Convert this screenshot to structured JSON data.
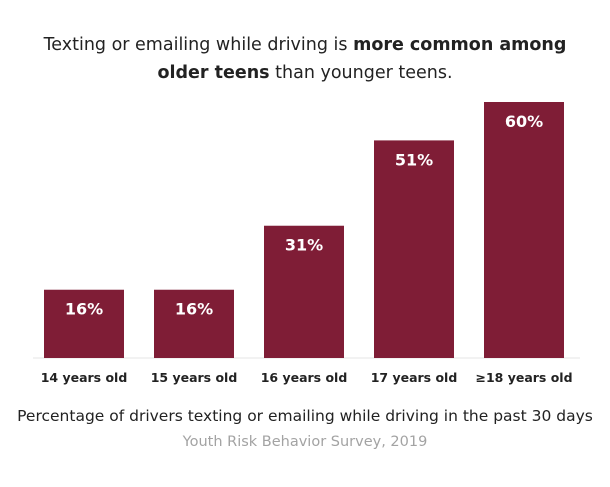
{
  "chart_data": {
    "type": "bar",
    "title_parts": [
      {
        "text": "Texting or emailing while driving is ",
        "bold": false
      },
      {
        "text": "more common among older teens",
        "bold": true
      },
      {
        "text": " than younger teens.",
        "bold": false
      }
    ],
    "categories": [
      "14 years old",
      "15 years old",
      "16 years old",
      "17 years old",
      "≥18 years old"
    ],
    "values": [
      16,
      16,
      31,
      51,
      60
    ],
    "data_labels": [
      "16%",
      "16%",
      "31%",
      "51%",
      "60%"
    ],
    "xlabel": "Percentage of drivers texting or emailing while driving in the past 30 days",
    "source": "Youth Risk Behavior Survey, 2019",
    "ylim": [
      0,
      60
    ],
    "grid": false,
    "legend": "none",
    "bar_color": "#7f1d36",
    "label_color": "#ffffff"
  }
}
